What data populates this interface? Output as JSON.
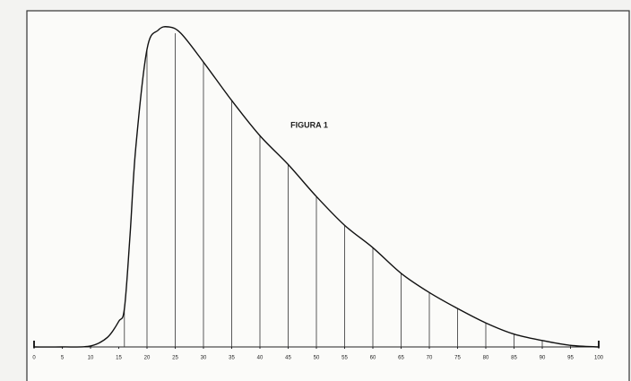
{
  "chart_data": {
    "type": "line",
    "title": "FIGURA 1",
    "x": [
      0,
      5,
      10,
      13,
      15,
      16,
      17,
      18,
      20,
      22,
      23.8,
      26,
      30,
      35,
      40,
      45,
      50,
      55,
      60,
      65,
      70,
      75,
      80,
      85,
      90,
      95,
      100
    ],
    "values": [
      0,
      0,
      0.3,
      3,
      8,
      12,
      35,
      62,
      93,
      99,
      100,
      98,
      89,
      77,
      66,
      57,
      47,
      38,
      31,
      23,
      17,
      12,
      7.5,
      4,
      2,
      0.5,
      0
    ],
    "color": "#111111",
    "drop_lines": {
      "x": [
        16,
        20,
        25,
        30,
        35,
        40,
        45,
        50,
        55,
        60,
        65,
        70,
        75,
        80,
        85,
        90,
        95
      ],
      "values": [
        12,
        93,
        98,
        89,
        77,
        66,
        57,
        47,
        38,
        31,
        23,
        17,
        12,
        7.5,
        4,
        2,
        0.5
      ]
    },
    "xlim": [
      0,
      100
    ],
    "xticks": [
      0,
      5,
      10,
      15,
      20,
      25,
      30,
      35,
      40,
      45,
      50,
      55,
      60,
      65,
      70,
      75,
      80,
      85,
      90,
      95,
      100
    ],
    "ylim": [
      0,
      100
    ]
  }
}
